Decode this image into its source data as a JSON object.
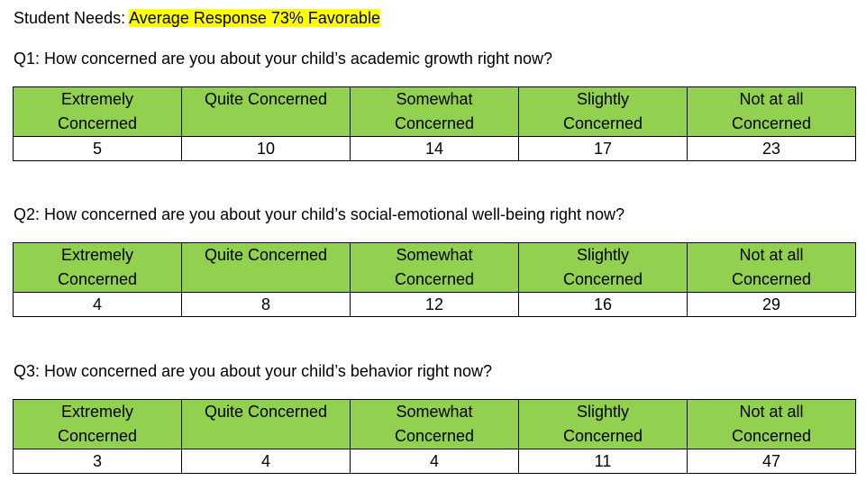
{
  "header": {
    "label": "Student Needs:",
    "highlight": "Average Response 73% Favorable",
    "highlight_color": "#ffff00"
  },
  "table_header_color": "#92d050",
  "columns": [
    [
      "Extremely",
      "Concerned"
    ],
    [
      "Quite Concerned",
      ""
    ],
    [
      "Somewhat",
      "Concerned"
    ],
    [
      "Slightly",
      "Concerned"
    ],
    [
      "Not at all",
      "Concerned"
    ]
  ],
  "questions": [
    {
      "text": "Q1: How concerned are you about your child’s academic growth right now?",
      "values": [
        "5",
        "10",
        "14",
        "17",
        "23"
      ]
    },
    {
      "text": "Q2: How concerned are you about your child’s social-emotional well-being right now?",
      "values": [
        "4",
        "8",
        "12",
        "16",
        "29"
      ]
    },
    {
      "text": "Q3: How concerned are you about your child’s behavior right now?",
      "values": [
        "3",
        "4",
        "4",
        "11",
        "47"
      ]
    }
  ]
}
